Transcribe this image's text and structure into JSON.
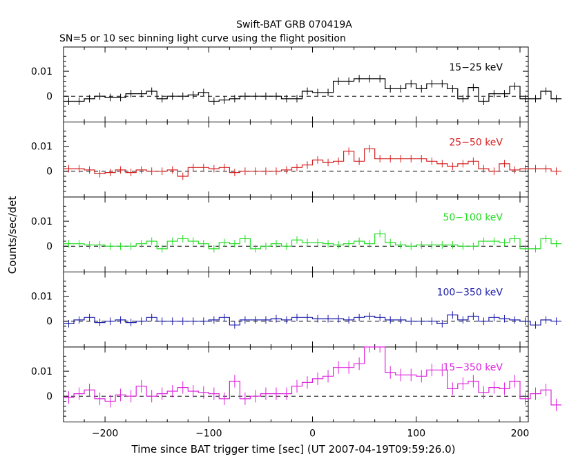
{
  "title": "Swift-BAT GRB 070419A",
  "subtitle": "SN=5 or 10 sec binning light curve using the flight position",
  "chart_data": {
    "type": "line",
    "title": "Swift-BAT GRB 070419A",
    "subtitle": "SN=5 or 10 sec binning light curve using the flight position",
    "xlabel": "Time since BAT trigger time [sec] (UT 2007-04-19T09:59:26.0)",
    "ylabel": "Counts/sec/det",
    "xlim": [
      -240,
      208
    ],
    "xticks": [
      -200,
      -100,
      0,
      100,
      200
    ],
    "x_tick_labels": [
      "−200",
      "−100",
      "0",
      "100",
      "200"
    ],
    "binning_sec": 10,
    "x_start": -240,
    "panels": [
      {
        "label": "15−25 keV",
        "color": "#000000",
        "ylim": [
          -0.0103,
          0.0197
        ],
        "yticks": [
          0,
          0.01
        ],
        "ytick_labels": [
          "0",
          "0.01"
        ],
        "error": 0.0015,
        "values": [
          -0.002,
          -0.002,
          -0.001,
          0.0,
          -0.0005,
          -0.0005,
          0.001,
          0.001,
          0.002,
          -0.001,
          0.0,
          0.0,
          0.0005,
          0.0015,
          -0.002,
          -0.0015,
          -0.001,
          0.0,
          0.0,
          0.0,
          0.0,
          -0.001,
          -0.001,
          0.002,
          0.0015,
          0.0015,
          0.006,
          0.006,
          0.007,
          0.007,
          0.007,
          0.003,
          0.003,
          0.005,
          0.003,
          0.005,
          0.005,
          0.003,
          -0.001,
          0.0035,
          -0.002,
          0.001,
          0.001,
          0.004,
          -0.001,
          -0.001,
          0.002,
          -0.001
        ]
      },
      {
        "label": "25−50 keV",
        "color": "#d42020",
        "ylim": [
          -0.0103,
          0.0197
        ],
        "yticks": [
          0,
          0.01
        ],
        "ytick_labels": [
          "0",
          "0.01"
        ],
        "error": 0.0015,
        "values": [
          0.001,
          0.001,
          0.0005,
          -0.001,
          -0.0005,
          0.0005,
          -0.0005,
          0.0005,
          0.0,
          0.0,
          0.0005,
          -0.002,
          0.0015,
          0.0015,
          0.001,
          0.0015,
          -0.0005,
          0.0,
          0.0,
          0.0,
          0.0,
          0.0005,
          0.0015,
          0.0025,
          0.0045,
          0.0035,
          0.004,
          0.008,
          0.004,
          0.009,
          0.005,
          0.005,
          0.005,
          0.005,
          0.005,
          0.004,
          0.003,
          0.002,
          0.003,
          0.004,
          0.001,
          0.0,
          0.003,
          0.0005,
          0.001,
          0.001,
          0.001,
          0.0
        ]
      },
      {
        "label": "50−100 keV",
        "color": "#22dd22",
        "ylim": [
          -0.0103,
          0.0197
        ],
        "yticks": [
          0,
          0.01
        ],
        "ytick_labels": [
          "0",
          "0.01"
        ],
        "error": 0.0015,
        "values": [
          0.001,
          0.001,
          0.0005,
          0.0005,
          0.0,
          0.0,
          0.0,
          0.001,
          0.002,
          -0.001,
          0.002,
          0.003,
          0.002,
          0.001,
          -0.001,
          0.0015,
          0.001,
          0.003,
          -0.001,
          0.0,
          0.001,
          0.0,
          0.0025,
          0.0015,
          0.0015,
          0.001,
          0.0005,
          0.001,
          0.002,
          0.001,
          0.005,
          0.0015,
          0.0005,
          0.0,
          0.0005,
          0.0005,
          0.0005,
          0.0005,
          0.0,
          0.0,
          0.002,
          0.002,
          0.0015,
          0.003,
          -0.001,
          -0.001,
          0.003,
          0.001
        ]
      },
      {
        "label": "100−350 keV",
        "color": "#1a1aaa",
        "ylim": [
          -0.0103,
          0.0197
        ],
        "yticks": [
          0,
          0.01
        ],
        "ytick_labels": [
          "0",
          "0.01"
        ],
        "error": 0.0015,
        "values": [
          -0.001,
          0.0005,
          0.0015,
          -0.0005,
          0.0,
          0.0005,
          -0.0005,
          0.0,
          0.0015,
          0.0,
          0.0,
          0.0,
          0.0,
          0.0,
          0.0005,
          0.0015,
          -0.0015,
          0.0005,
          0.0005,
          0.0005,
          0.001,
          0.0005,
          0.0015,
          0.0015,
          0.001,
          0.001,
          0.001,
          0.0005,
          0.0015,
          0.002,
          0.0015,
          0.0005,
          0.0005,
          0.0,
          0.0,
          0.0,
          -0.001,
          0.0025,
          0.0005,
          0.002,
          0.0,
          0.0015,
          0.001,
          0.0005,
          0.0,
          -0.0015,
          0.0005,
          0.0
        ]
      },
      {
        "label": "15−350 keV",
        "color": "#dd22dd",
        "ylim": [
          -0.0103,
          0.0197
        ],
        "yticks": [
          0,
          0.01
        ],
        "ytick_labels": [
          "0",
          "0.01"
        ],
        "error": 0.0025,
        "values": [
          -0.0005,
          0.001,
          0.0025,
          -0.001,
          -0.002,
          0.0005,
          0.0,
          0.004,
          0.0,
          0.001,
          0.002,
          0.0035,
          0.002,
          0.0015,
          0.001,
          -0.001,
          0.006,
          -0.001,
          0.0,
          0.001,
          0.001,
          0.001,
          0.004,
          0.0055,
          0.007,
          0.008,
          0.0115,
          0.0115,
          0.013,
          0.02,
          0.02,
          0.0095,
          0.0085,
          0.0085,
          0.008,
          0.0105,
          0.0105,
          0.003,
          0.005,
          0.006,
          0.0015,
          0.0035,
          0.003,
          0.006,
          -0.001,
          0.001,
          0.0025,
          -0.0035
        ]
      }
    ]
  }
}
